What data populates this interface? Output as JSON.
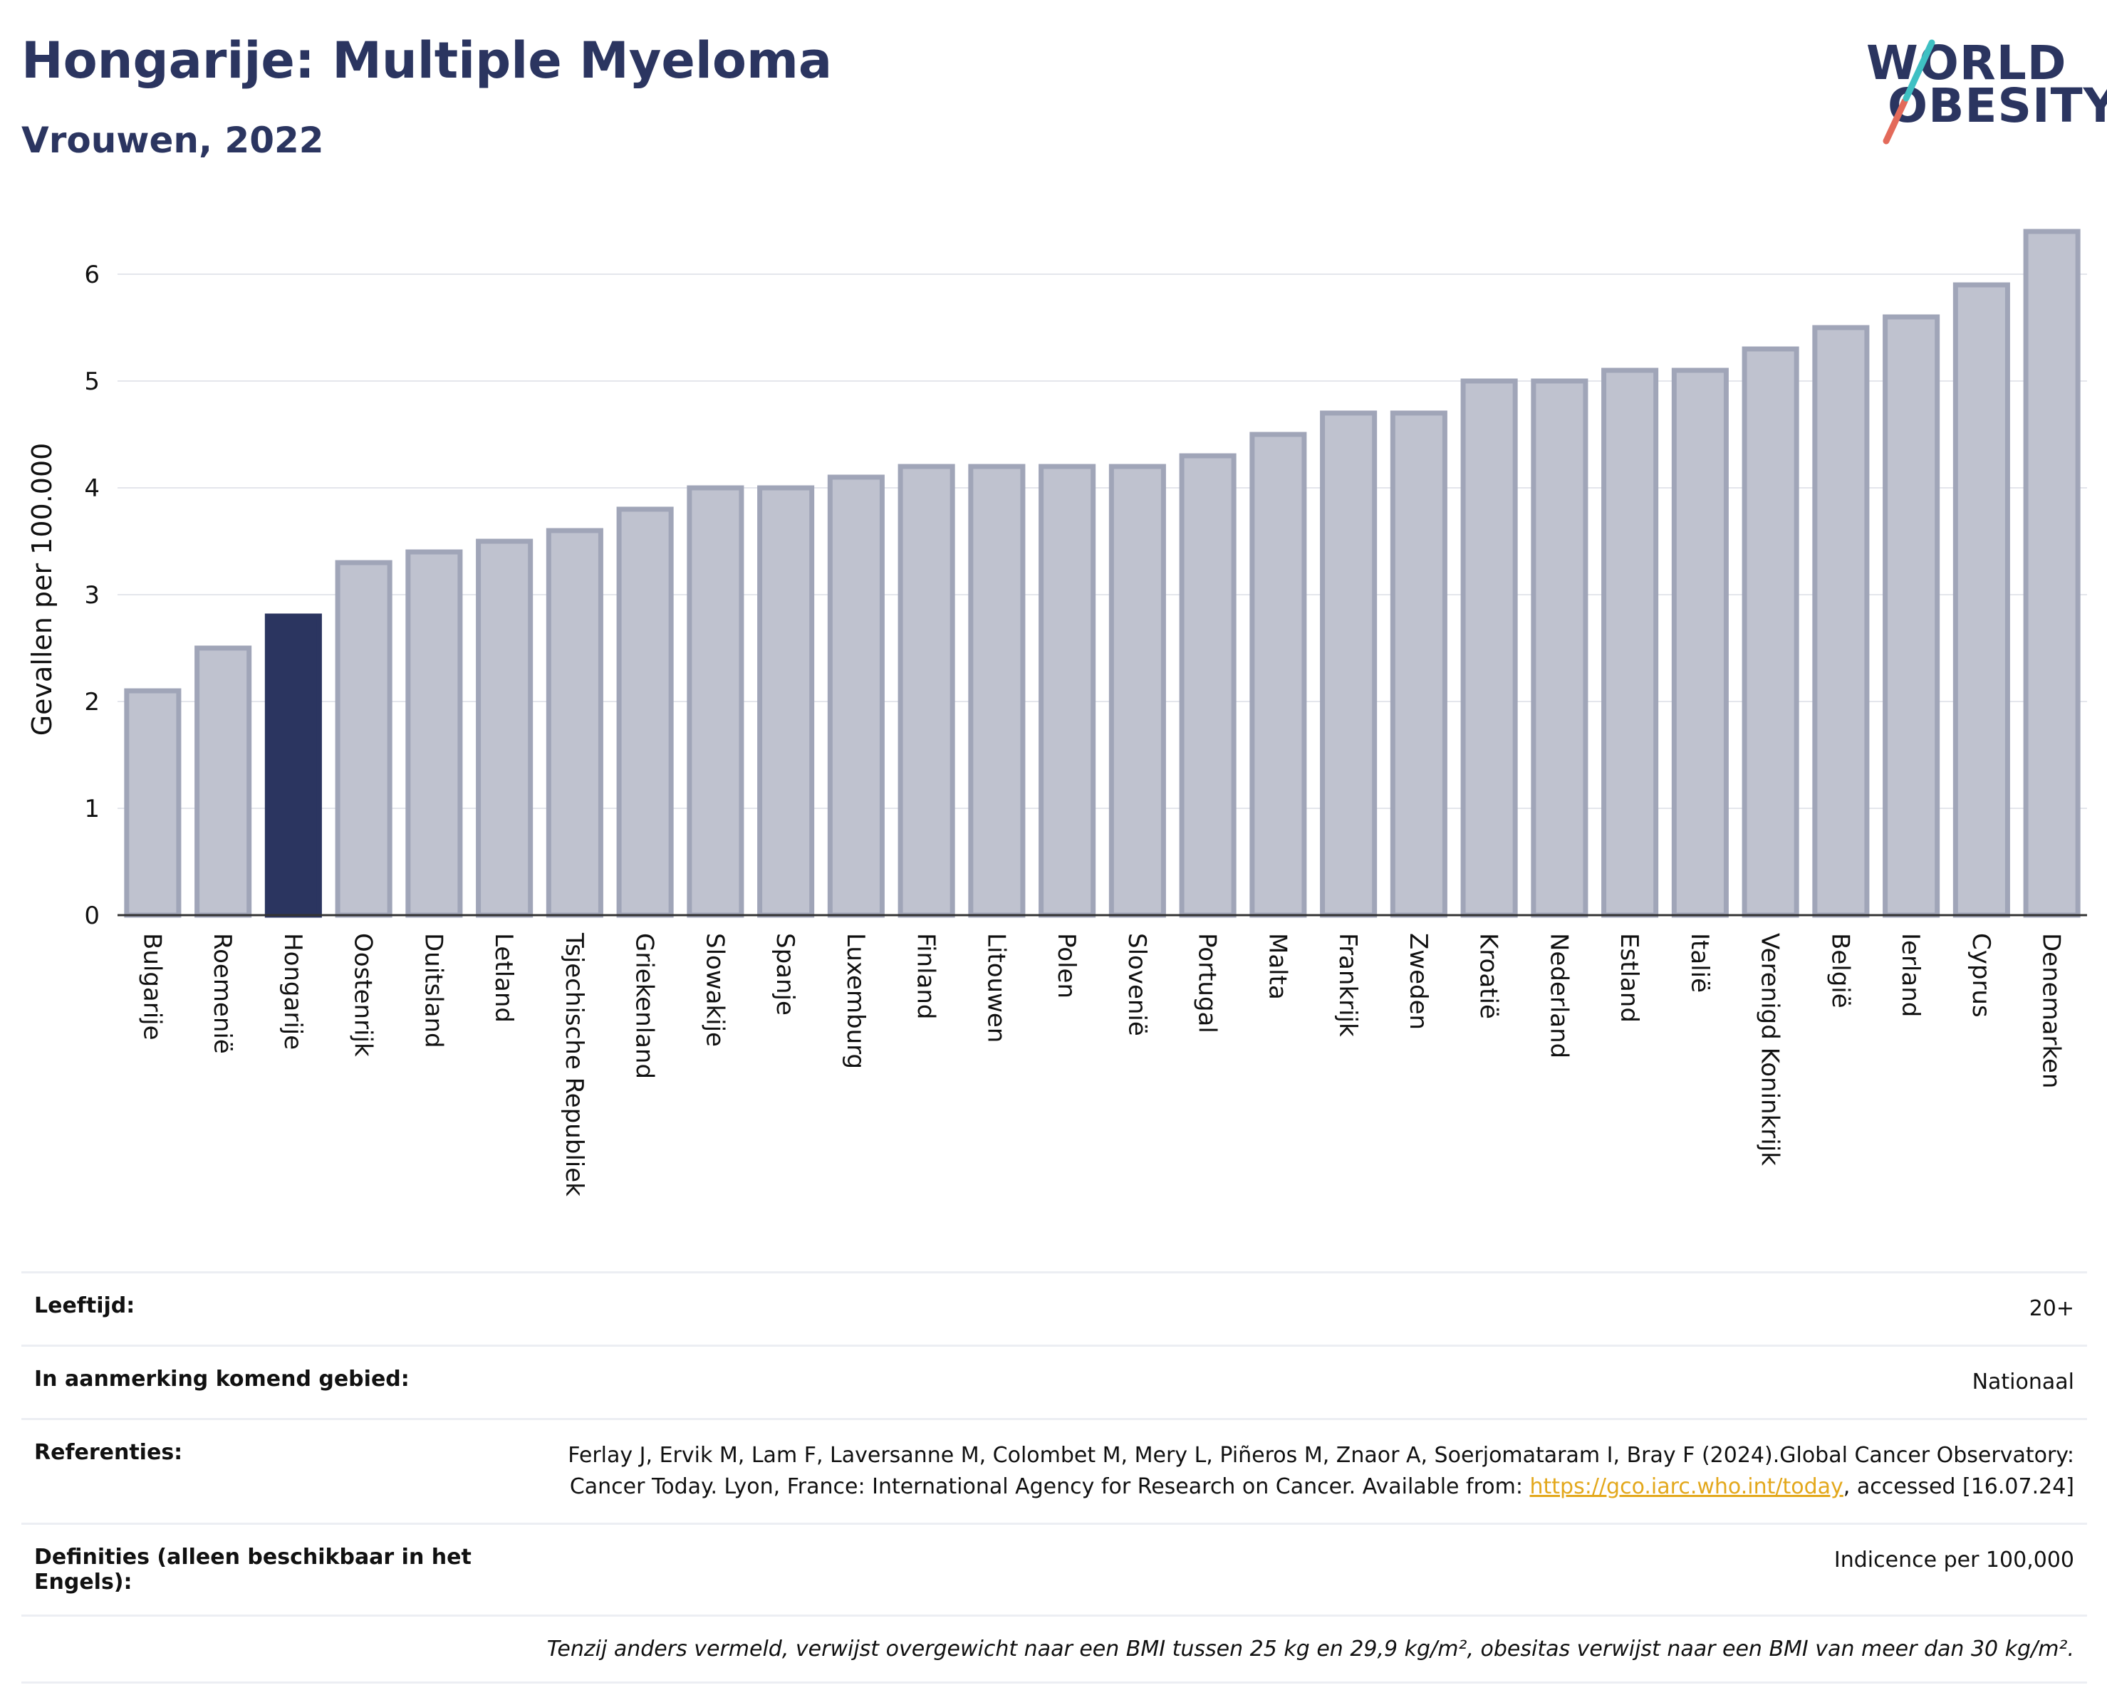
{
  "header": {
    "title": "Hongarije: Multiple Myeloma",
    "subtitle": "Vrouwen, 2022",
    "logo_line1": "WORLD",
    "logo_line2": "OBESITY"
  },
  "chart_data": {
    "type": "bar",
    "title": "Hongarije: Multiple Myeloma",
    "subtitle": "Vrouwen, 2022",
    "ylabel": "Gevallen per 100.000",
    "xlabel": "",
    "ylim": [
      0,
      6.5
    ],
    "yticks": [
      0,
      1,
      2,
      3,
      4,
      5,
      6
    ],
    "grid": true,
    "highlight": "Hongarije",
    "colors": {
      "default": "#bfc2cf",
      "default_border": "#a0a5b8",
      "highlight": "#2b3560"
    },
    "categories": [
      "Bulgarije",
      "Roemenië",
      "Hongarije",
      "Oostenrijk",
      "Duitsland",
      "Letland",
      "Tsjechische Republiek",
      "Griekenland",
      "Slowakije",
      "Spanje",
      "Luxemburg",
      "Finland",
      "Litouwen",
      "Polen",
      "Slovenië",
      "Portugal",
      "Malta",
      "Frankrijk",
      "Zweden",
      "Kroatië",
      "Nederland",
      "Estland",
      "Italië",
      "Verenigd Koninkrijk",
      "België",
      "Ierland",
      "Cyprus",
      "Denemarken"
    ],
    "values": [
      2.1,
      2.5,
      2.8,
      3.3,
      3.4,
      3.5,
      3.6,
      3.8,
      4.0,
      4.0,
      4.1,
      4.2,
      4.2,
      4.2,
      4.2,
      4.3,
      4.5,
      4.7,
      4.7,
      5.0,
      5.0,
      5.1,
      5.1,
      5.3,
      5.5,
      5.6,
      5.9,
      6.4
    ]
  },
  "info": {
    "age_label": "Leeftijd:",
    "age_value": "20+",
    "area_label": "In aanmerking komend gebied:",
    "area_value": "Nationaal",
    "ref_label": "Referenties:",
    "ref_text1": "Ferlay J, Ervik M, Lam F, Laversanne M, Colombet M, Mery L, Piñeros M, Znaor A, Soerjomataram I, Bray F (2024).Global Cancer Observatory: Cancer Today. Lyon, France: International Agency for Research on Cancer. Available from: ",
    "ref_link": "https://gco.iarc.who.int/today",
    "ref_text2": ", accessed [16.07.24]",
    "def_label": "Definities (alleen beschikbaar in het Engels):",
    "def_value": "Indicence per 100,000",
    "footnote": "Tenzij anders vermeld, verwijst overgewicht naar een BMI tussen 25 kg en 29,9 kg/m², obesitas verwijst naar een BMI van meer dan 30 kg/m²."
  }
}
